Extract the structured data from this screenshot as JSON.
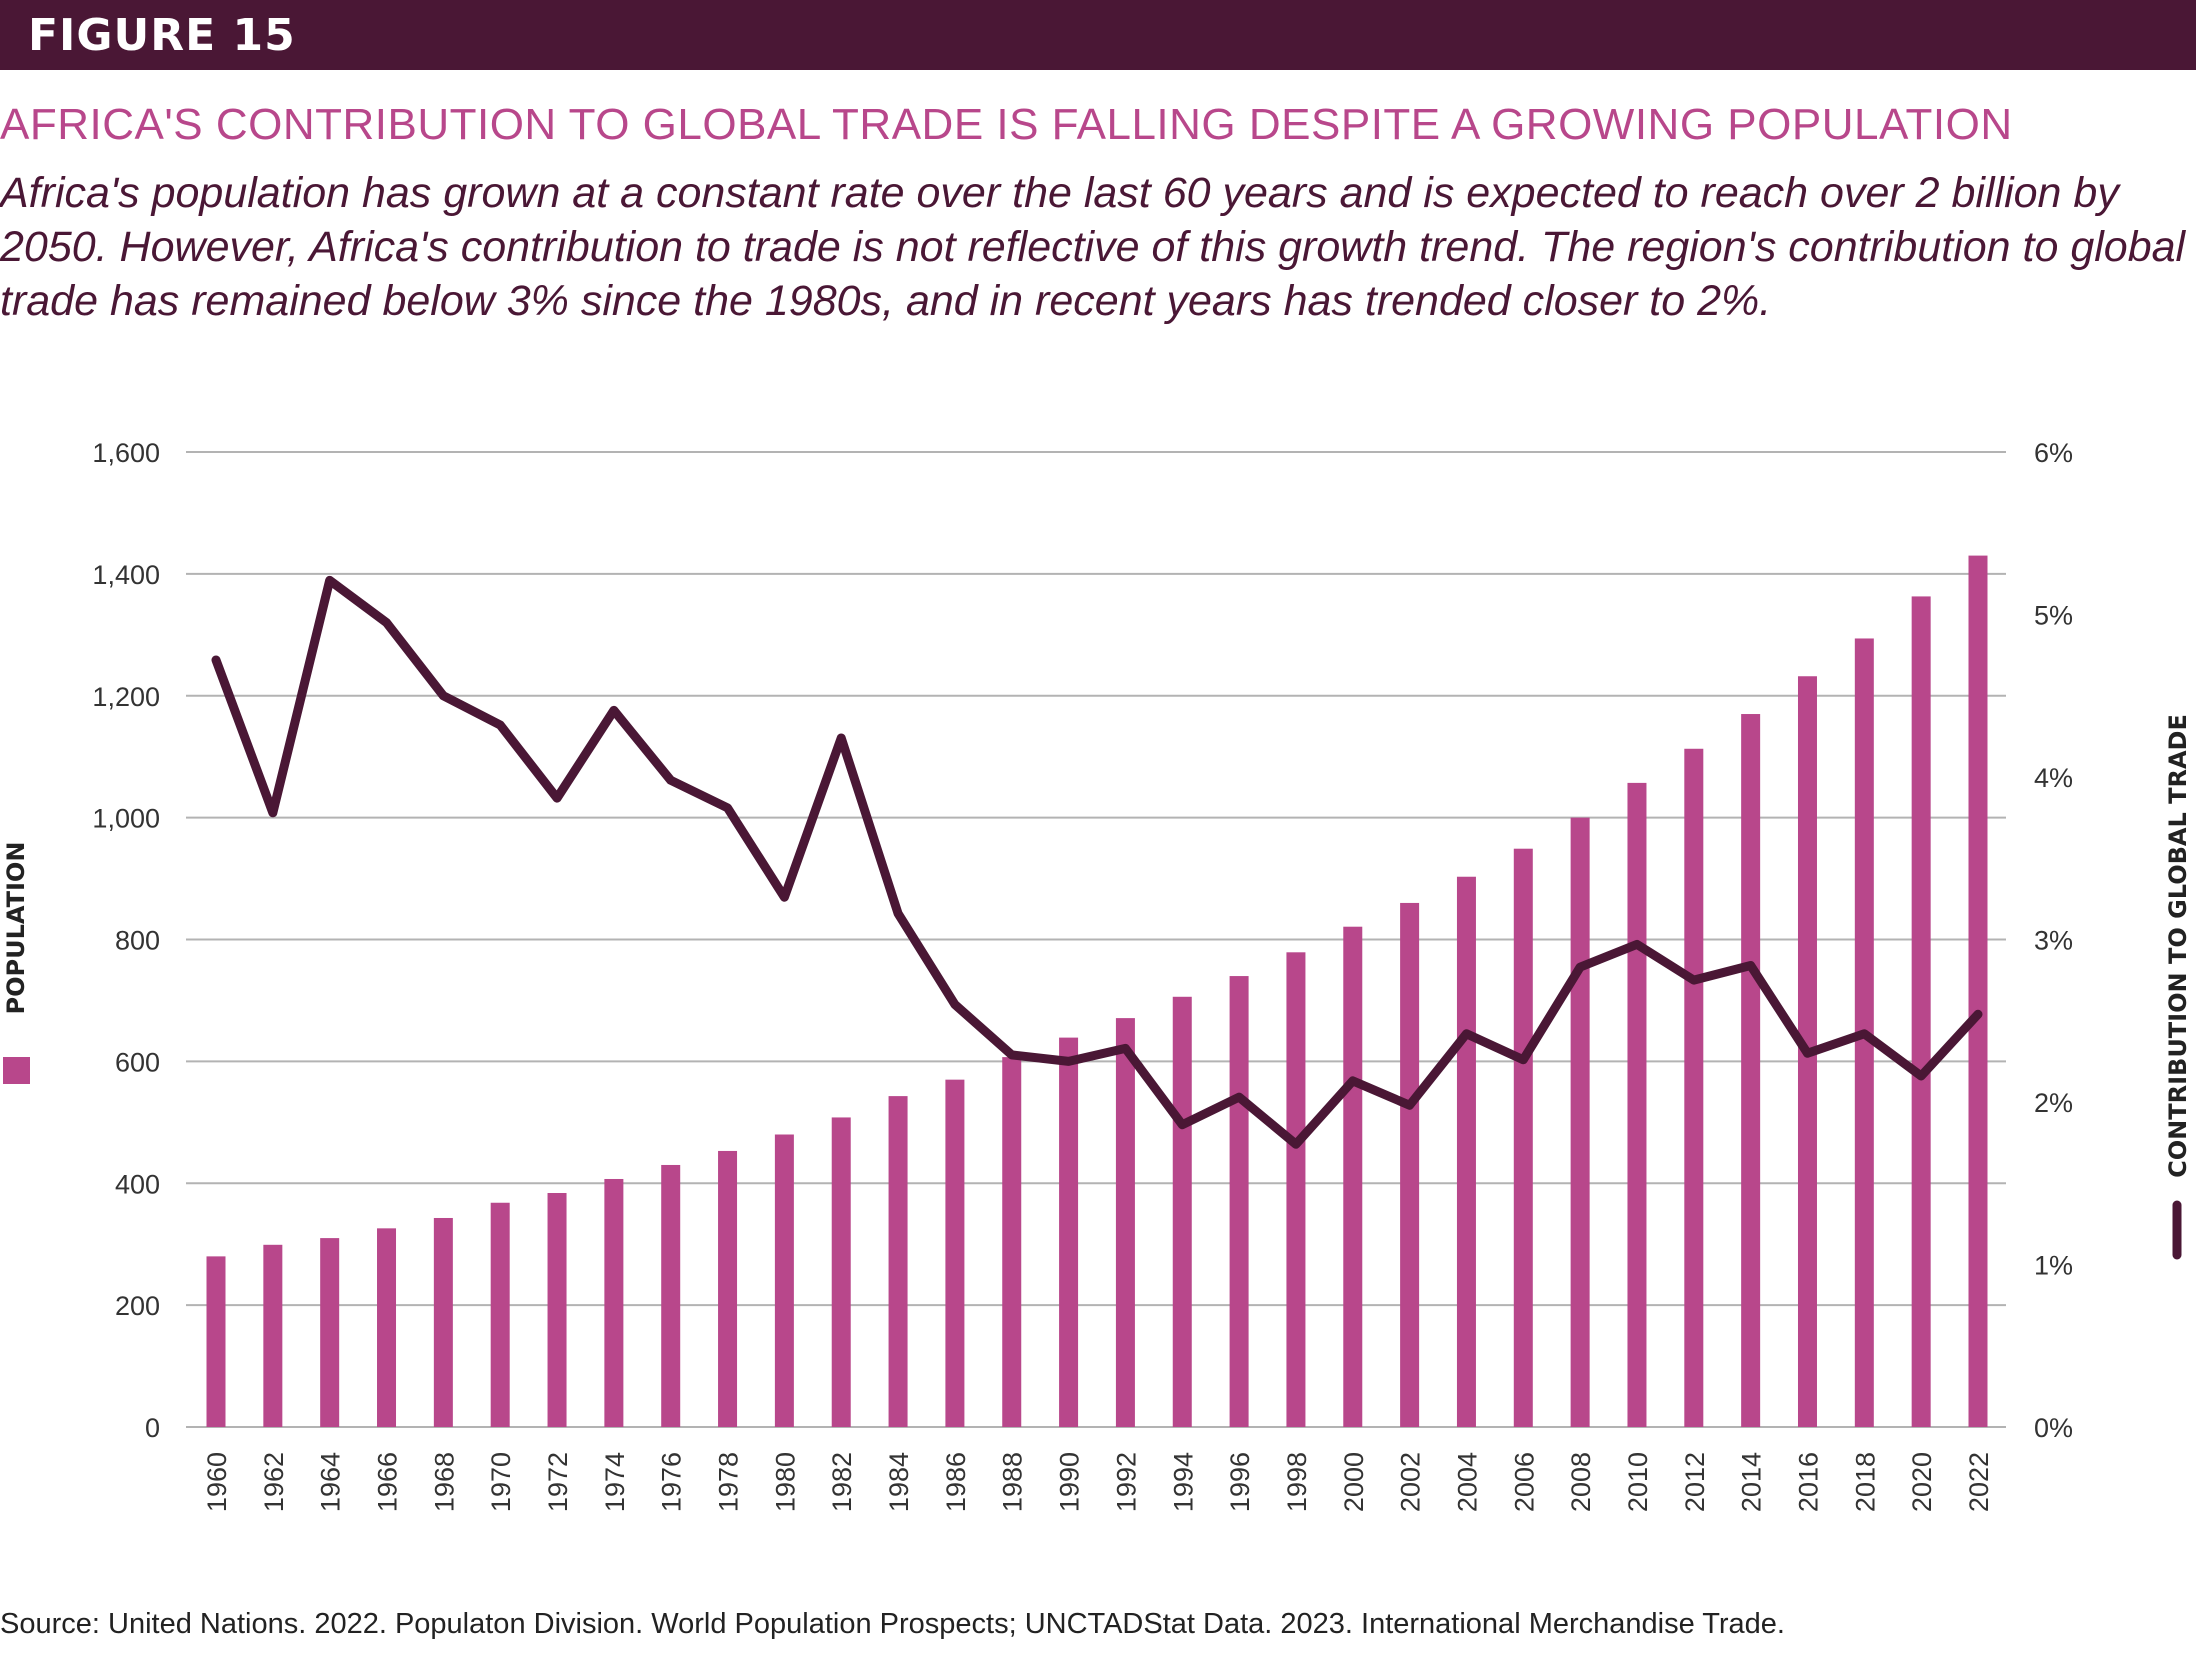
{
  "figure_label": "FIGURE 15",
  "title": "AFRICA'S CONTRIBUTION TO GLOBAL TRADE IS FALLING DESPITE A GROWING POPULATION",
  "subtitle": "Africa's population has grown at a constant rate over the last 60 years and is expected to reach over 2 billion by 2050. However, Africa's contribution to trade is not reflective of this growth trend. The region's contribution to global trade has remained below 3% since the 1980s, and in recent years has trended closer to 2%.",
  "source": "Source: United Nations. 2022. Populaton Division. World Population Prospects; UNCTADStat Data. 2023. International Merchandise Trade.",
  "chart_data": {
    "type": "bar+line",
    "categories": [
      "1960",
      "1962",
      "1964",
      "1966",
      "1968",
      "1970",
      "1972",
      "1974",
      "1976",
      "1978",
      "1980",
      "1982",
      "1984",
      "1986",
      "1988",
      "1990",
      "1992",
      "1994",
      "1996",
      "1998",
      "2000",
      "2002",
      "2004",
      "2006",
      "2008",
      "2010",
      "2012",
      "2014",
      "2016",
      "2018",
      "2020",
      "2022"
    ],
    "series": [
      {
        "name": "POPULATION",
        "type": "bar",
        "axis": "left",
        "color": "#b8478b",
        "values": [
          280,
          299,
          310,
          326,
          343,
          368,
          384,
          407,
          430,
          453,
          480,
          508,
          543,
          570,
          607,
          639,
          671,
          706,
          740,
          779,
          821,
          860,
          903,
          949,
          1000,
          1057,
          1113,
          1170,
          1232,
          1294,
          1363,
          1430
        ]
      },
      {
        "name": "CONTRIBUTION TO GLOBAL TRADE",
        "type": "line",
        "axis": "right",
        "color": "#4a1735",
        "values": [
          4.72,
          3.78,
          5.21,
          4.95,
          4.5,
          4.32,
          3.87,
          4.41,
          3.98,
          3.81,
          3.26,
          4.24,
          3.16,
          2.6,
          2.29,
          2.25,
          2.33,
          1.86,
          2.03,
          1.74,
          2.13,
          1.98,
          2.42,
          2.26,
          2.83,
          2.97,
          2.75,
          2.84,
          2.3,
          2.42,
          2.16,
          2.54
        ]
      }
    ],
    "ylim_left": [
      0,
      1600
    ],
    "yticks_left": [
      "0",
      "200",
      "400",
      "600",
      "800",
      "1,000",
      "1,200",
      "1,400",
      "1,600"
    ],
    "ylim_right": [
      0,
      6
    ],
    "yticks_right": [
      "0%",
      "1%",
      "2%",
      "3%",
      "4%",
      "5%",
      "6%"
    ],
    "ylabel_left": "POPULATION",
    "ylabel_right": "CONTRIBUTION TO GLOBAL TRADE",
    "grid": true,
    "gridline_color": "#b3b3b3"
  }
}
